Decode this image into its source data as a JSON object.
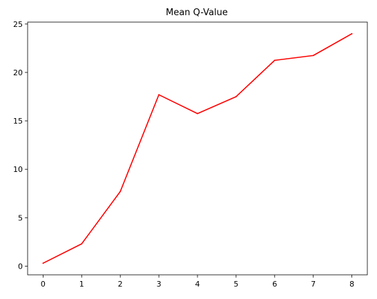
{
  "chart_data": {
    "type": "line",
    "title": "Mean Q-Value",
    "xlabel": "",
    "ylabel": "",
    "x": [
      0,
      1,
      2,
      3,
      4,
      5,
      6,
      7,
      8
    ],
    "series": [
      {
        "values": [
          0.3,
          2.3,
          7.7,
          17.7,
          15.75,
          17.5,
          21.25,
          21.75,
          24.0
        ],
        "color": "#ff0000"
      }
    ],
    "xticks": [
      0,
      1,
      2,
      3,
      4,
      5,
      6,
      7,
      8
    ],
    "yticks": [
      0,
      5,
      10,
      15,
      20,
      25
    ],
    "xlim": [
      -0.4,
      8.4
    ],
    "ylim": [
      -0.9,
      25.2
    ],
    "grid": false,
    "legend": "none"
  }
}
